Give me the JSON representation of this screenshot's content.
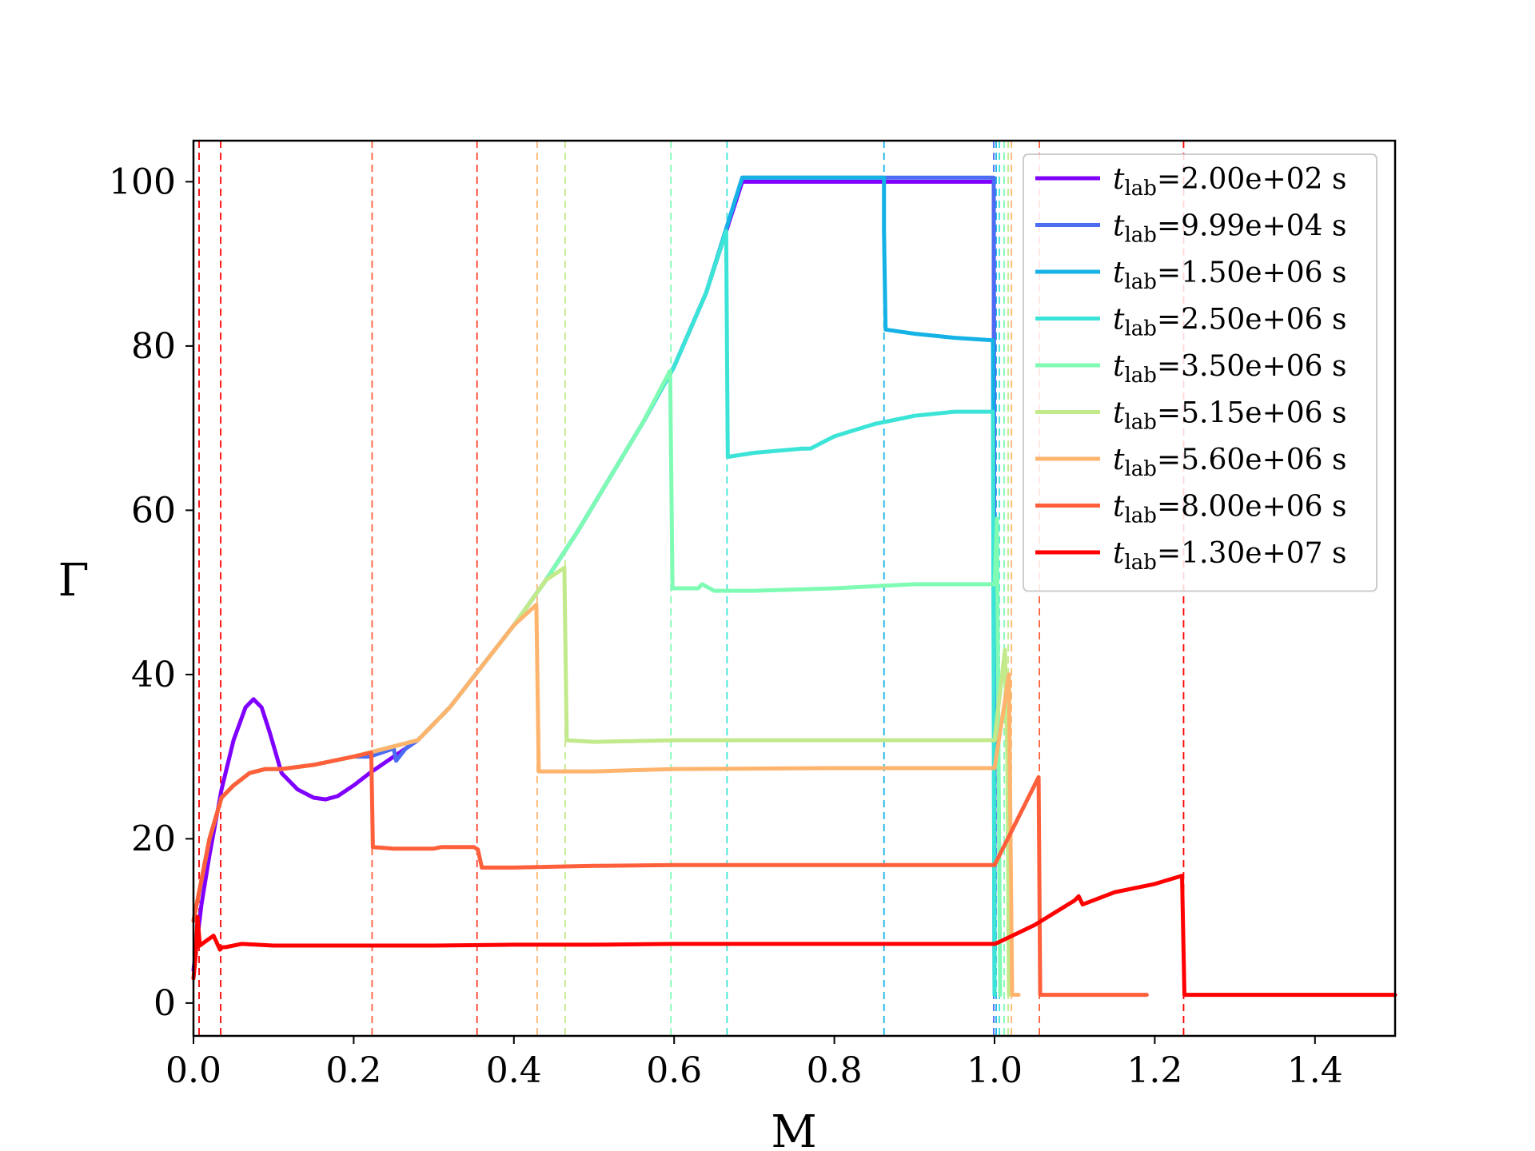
{
  "chart_data": {
    "type": "line",
    "xlabel": "M",
    "ylabel": "Γ",
    "xlim": [
      0.0,
      1.5
    ],
    "ylim": [
      -4,
      105
    ],
    "xticks": [
      "0.0",
      "0.2",
      "0.4",
      "0.6",
      "0.8",
      "1.0",
      "1.2",
      "1.4"
    ],
    "yticks": [
      "0",
      "20",
      "40",
      "60",
      "80",
      "100"
    ],
    "grid": false,
    "legend_position": "top-right",
    "series": [
      {
        "name": "t_lab=2.00e+02 s",
        "t": "2.00e+02",
        "color": "#8000ff",
        "x": [
          0.0,
          0.01,
          0.02,
          0.035,
          0.05,
          0.065,
          0.075,
          0.085,
          0.095,
          0.11,
          0.13,
          0.15,
          0.165,
          0.18,
          0.2,
          0.22,
          0.25,
          0.28,
          0.32,
          0.36,
          0.4,
          0.44,
          0.48,
          0.52,
          0.56,
          0.6,
          0.64,
          0.685,
          0.75,
          0.85,
          0.95,
          0.999,
          1.0
        ],
        "y": [
          4,
          12,
          18,
          26,
          32,
          36,
          37,
          36,
          33,
          28,
          26,
          25,
          24.8,
          25.2,
          26.5,
          28,
          30,
          32,
          36,
          41,
          46,
          51.5,
          57.5,
          64,
          70.5,
          77.5,
          86.5,
          100,
          100,
          100,
          100,
          100,
          1
        ]
      },
      {
        "name": "t_lab=9.99e+04 s",
        "t": "9.99e+04",
        "color": "#4c6cf4",
        "x": [
          0.0,
          0.02,
          0.035,
          0.05,
          0.07,
          0.09,
          0.11,
          0.15,
          0.2,
          0.22,
          0.25,
          0.253,
          0.265,
          0.28,
          0.32,
          0.36,
          0.4,
          0.44,
          0.48,
          0.52,
          0.56,
          0.6,
          0.64,
          0.685,
          0.75,
          0.85,
          0.95,
          0.999,
          1.0
        ],
        "y": [
          10,
          20,
          25,
          26.5,
          28,
          28.5,
          28.5,
          29,
          30,
          30,
          31,
          29.5,
          31,
          32,
          36,
          41,
          46,
          51.5,
          57.5,
          64,
          70.5,
          77.5,
          86.5,
          100.5,
          100.5,
          100.5,
          100.5,
          100.5,
          1
        ]
      },
      {
        "name": "t_lab=1.50e+06 s",
        "t": "1.50e+06",
        "color": "#15b2e5",
        "x": [
          0.0,
          0.02,
          0.035,
          0.05,
          0.07,
          0.09,
          0.11,
          0.15,
          0.2,
          0.28,
          0.32,
          0.36,
          0.4,
          0.44,
          0.48,
          0.52,
          0.56,
          0.6,
          0.64,
          0.685,
          0.75,
          0.862,
          0.862,
          0.864,
          0.9,
          0.95,
          0.998,
          1.0
        ],
        "y": [
          10,
          20,
          25,
          26.5,
          28,
          28.5,
          28.5,
          29,
          30,
          32,
          36,
          41,
          46,
          51.5,
          57.5,
          64,
          70.5,
          77.5,
          86.5,
          100.5,
          100.5,
          100.5,
          94,
          82,
          81.5,
          81,
          80.7,
          1
        ]
      },
      {
        "name": "t_lab=2.50e+06 s",
        "t": "2.50e+06",
        "color": "#3ce4d7",
        "x": [
          0.0,
          0.02,
          0.035,
          0.05,
          0.07,
          0.09,
          0.11,
          0.15,
          0.2,
          0.28,
          0.32,
          0.36,
          0.4,
          0.44,
          0.48,
          0.52,
          0.56,
          0.6,
          0.64,
          0.665,
          0.667,
          0.7,
          0.76,
          0.77,
          0.8,
          0.85,
          0.9,
          0.95,
          0.998,
          1.0
        ],
        "y": [
          10,
          20,
          25,
          26.5,
          28,
          28.5,
          28.5,
          29,
          30,
          32,
          36,
          41,
          46,
          51.5,
          57.5,
          64,
          70.5,
          77.5,
          86.5,
          94,
          66.5,
          67,
          67.5,
          67.5,
          69,
          70.5,
          71.5,
          72,
          72,
          1
        ]
      },
      {
        "name": "t_lab=3.50e+06 s",
        "t": "3.50e+06",
        "color": "#7ffbb4",
        "x": [
          0.0,
          0.02,
          0.035,
          0.05,
          0.07,
          0.09,
          0.11,
          0.15,
          0.2,
          0.28,
          0.32,
          0.36,
          0.4,
          0.44,
          0.48,
          0.52,
          0.56,
          0.595,
          0.598,
          0.63,
          0.635,
          0.65,
          0.7,
          0.8,
          0.9,
          1.0,
          1.003,
          1.005,
          1.007
        ],
        "y": [
          10,
          20,
          25,
          26.5,
          28,
          28.5,
          28.5,
          29,
          30,
          32,
          36,
          41,
          46,
          51.5,
          57.5,
          64,
          70.5,
          77,
          50.5,
          50.5,
          51,
          50.2,
          50.2,
          50.5,
          51,
          51,
          59,
          30,
          1
        ]
      },
      {
        "name": "t_lab=5.15e+06 s",
        "t": "5.15e+06",
        "color": "#c2ea8a",
        "x": [
          0.0,
          0.02,
          0.035,
          0.05,
          0.07,
          0.09,
          0.11,
          0.15,
          0.2,
          0.28,
          0.32,
          0.36,
          0.4,
          0.44,
          0.463,
          0.466,
          0.5,
          0.6,
          0.8,
          0.9,
          1.0,
          1.013,
          1.016,
          1.018
        ],
        "y": [
          10,
          20,
          25,
          26.5,
          28,
          28.5,
          28.5,
          29,
          30,
          32,
          36,
          41,
          46,
          51.5,
          53,
          32,
          31.8,
          32,
          32,
          32,
          32,
          43,
          30,
          1
        ]
      },
      {
        "name": "t_lab=5.60e+06 s",
        "t": "5.60e+06",
        "color": "#ffb46e",
        "x": [
          0.0,
          0.02,
          0.035,
          0.05,
          0.07,
          0.09,
          0.11,
          0.15,
          0.2,
          0.28,
          0.32,
          0.36,
          0.4,
          0.428,
          0.431,
          0.5,
          0.6,
          0.8,
          0.9,
          1.0,
          1.018,
          1.02,
          1.022,
          1.03
        ],
        "y": [
          10,
          20,
          25,
          26.5,
          28,
          28.5,
          28.5,
          29,
          30,
          32,
          36,
          41,
          46,
          48.5,
          28.2,
          28.2,
          28.5,
          28.6,
          28.6,
          28.6,
          40,
          20,
          1,
          1
        ]
      },
      {
        "name": "t_lab=8.00e+06 s",
        "t": "8.00e+06",
        "color": "#ff5f3a",
        "x": [
          0.0,
          0.02,
          0.035,
          0.05,
          0.07,
          0.09,
          0.11,
          0.15,
          0.2,
          0.222,
          0.224,
          0.25,
          0.3,
          0.31,
          0.35,
          0.355,
          0.36,
          0.4,
          0.5,
          0.6,
          0.8,
          0.9,
          1.0,
          1.055,
          1.057,
          1.06,
          1.1,
          1.15,
          1.19
        ],
        "y": [
          10,
          20,
          25,
          26.5,
          28,
          28.5,
          28.5,
          29,
          30,
          30.5,
          19,
          18.8,
          18.8,
          19,
          19,
          18.7,
          16.5,
          16.5,
          16.7,
          16.8,
          16.8,
          16.8,
          16.8,
          27.5,
          1,
          1,
          1,
          1,
          1
        ]
      },
      {
        "name": "t_lab=1.30e+07 s",
        "t": "1.30e+07",
        "color": "#ff0000",
        "x": [
          0.0,
          0.003,
          0.005,
          0.008,
          0.015,
          0.025,
          0.033,
          0.036,
          0.04,
          0.06,
          0.1,
          0.2,
          0.3,
          0.4,
          0.5,
          0.6,
          0.7,
          0.8,
          0.9,
          1.0,
          1.005,
          1.05,
          1.1,
          1.105,
          1.11,
          1.15,
          1.2,
          1.234,
          1.237,
          1.3,
          1.4,
          1.5
        ],
        "y": [
          3,
          6,
          10.5,
          7,
          7.5,
          8.2,
          6.5,
          6.8,
          6.8,
          7.2,
          7,
          7,
          7,
          7.1,
          7.1,
          7.2,
          7.2,
          7.2,
          7.2,
          7.2,
          7.4,
          9.5,
          12.5,
          13,
          12,
          13.5,
          14.5,
          15.5,
          1,
          1,
          1,
          1
        ]
      }
    ],
    "vlines": [
      {
        "x": 0.007,
        "color": "#ff0000"
      },
      {
        "x": 0.034,
        "color": "#ff0000"
      },
      {
        "x": 0.223,
        "color": "#ff5f3a"
      },
      {
        "x": 0.354,
        "color": "#ff3b2a"
      },
      {
        "x": 0.429,
        "color": "#ffb46e"
      },
      {
        "x": 0.464,
        "color": "#c2ea8a"
      },
      {
        "x": 0.596,
        "color": "#7ffbb4"
      },
      {
        "x": 0.666,
        "color": "#3ce4d7"
      },
      {
        "x": 0.862,
        "color": "#15b2e5"
      },
      {
        "x": 0.999,
        "color": "#4c6cf4"
      },
      {
        "x": 1.002,
        "color": "#15b2e5"
      },
      {
        "x": 1.006,
        "color": "#3ce4d7"
      },
      {
        "x": 1.012,
        "color": "#7ffbb4"
      },
      {
        "x": 1.017,
        "color": "#c2ea8a"
      },
      {
        "x": 1.021,
        "color": "#ffb46e"
      },
      {
        "x": 1.056,
        "color": "#ff5f3a"
      },
      {
        "x": 1.236,
        "color": "#ff0000"
      }
    ]
  }
}
